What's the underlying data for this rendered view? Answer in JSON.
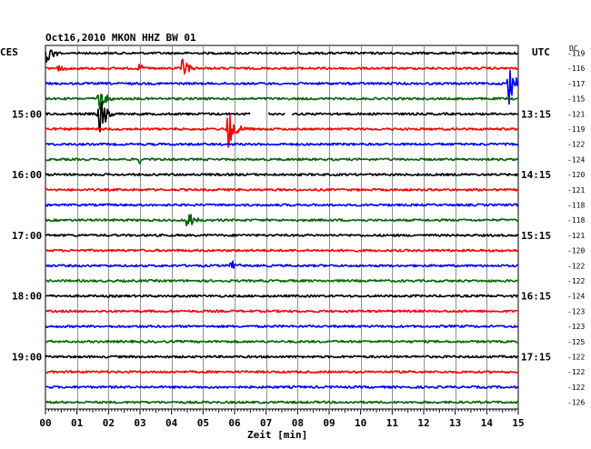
{
  "chart_data": {
    "type": "line",
    "title": "Oct16,2010   MKON HHZ BW 01",
    "left_axis_label": "CES",
    "right_axis_label": "UTC",
    "dc_header": "DC",
    "xlabel": "Zeit [min]",
    "xlim": [
      0,
      15
    ],
    "x_ticks": [
      "00",
      "01",
      "02",
      "03",
      "04",
      "05",
      "06",
      "07",
      "08",
      "09",
      "10",
      "11",
      "12",
      "13",
      "14",
      "15"
    ],
    "left_time_labels": [
      {
        "trace": 4,
        "label": "15:00"
      },
      {
        "trace": 8,
        "label": "16:00"
      },
      {
        "trace": 12,
        "label": "17:00"
      },
      {
        "trace": 16,
        "label": "18:00"
      },
      {
        "trace": 20,
        "label": "19:00"
      }
    ],
    "right_time_labels": [
      {
        "trace": 4,
        "label": "13:15"
      },
      {
        "trace": 8,
        "label": "14:15"
      },
      {
        "trace": 12,
        "label": "15:15"
      },
      {
        "trace": 16,
        "label": "16:15"
      },
      {
        "trace": 20,
        "label": "17:15"
      }
    ],
    "dc_values": [
      "-119",
      "-116",
      "-117",
      "-115",
      "-121",
      "-119",
      "-122",
      "-124",
      "-120",
      "-121",
      "-118",
      "-118",
      "-121",
      "-120",
      "-122",
      "-122",
      "-124",
      "-123",
      "-123",
      "-125",
      "-122",
      "-122",
      "-122",
      "-126"
    ],
    "trace_colors": [
      "#000000",
      "#ff0000",
      "#0000ff",
      "#006600"
    ],
    "grid": true,
    "events": [
      {
        "trace": 0,
        "minute": 0.05,
        "amplitude": 13
      },
      {
        "trace": 1,
        "minute": 0.4,
        "amplitude": 4
      },
      {
        "trace": 1,
        "minute": 3.0,
        "amplitude": 5
      },
      {
        "trace": 1,
        "minute": 4.35,
        "amplitude": 11
      },
      {
        "trace": 2,
        "minute": 14.7,
        "amplitude": 26
      },
      {
        "trace": 3,
        "minute": 1.7,
        "amplitude": 14
      },
      {
        "trace": 4,
        "minute": 1.7,
        "amplitude": 26
      },
      {
        "trace": 5,
        "minute": 5.8,
        "amplitude": 26
      },
      {
        "trace": 7,
        "minute": 3.0,
        "amplitude": 5
      },
      {
        "trace": 11,
        "minute": 4.45,
        "amplitude": 16
      },
      {
        "trace": 14,
        "minute": 5.8,
        "amplitude": 9
      }
    ],
    "gaps": [
      {
        "trace": 4,
        "from": 6.5,
        "to": 7.05
      },
      {
        "trace": 4,
        "from": 7.6,
        "to": 7.8
      }
    ]
  }
}
